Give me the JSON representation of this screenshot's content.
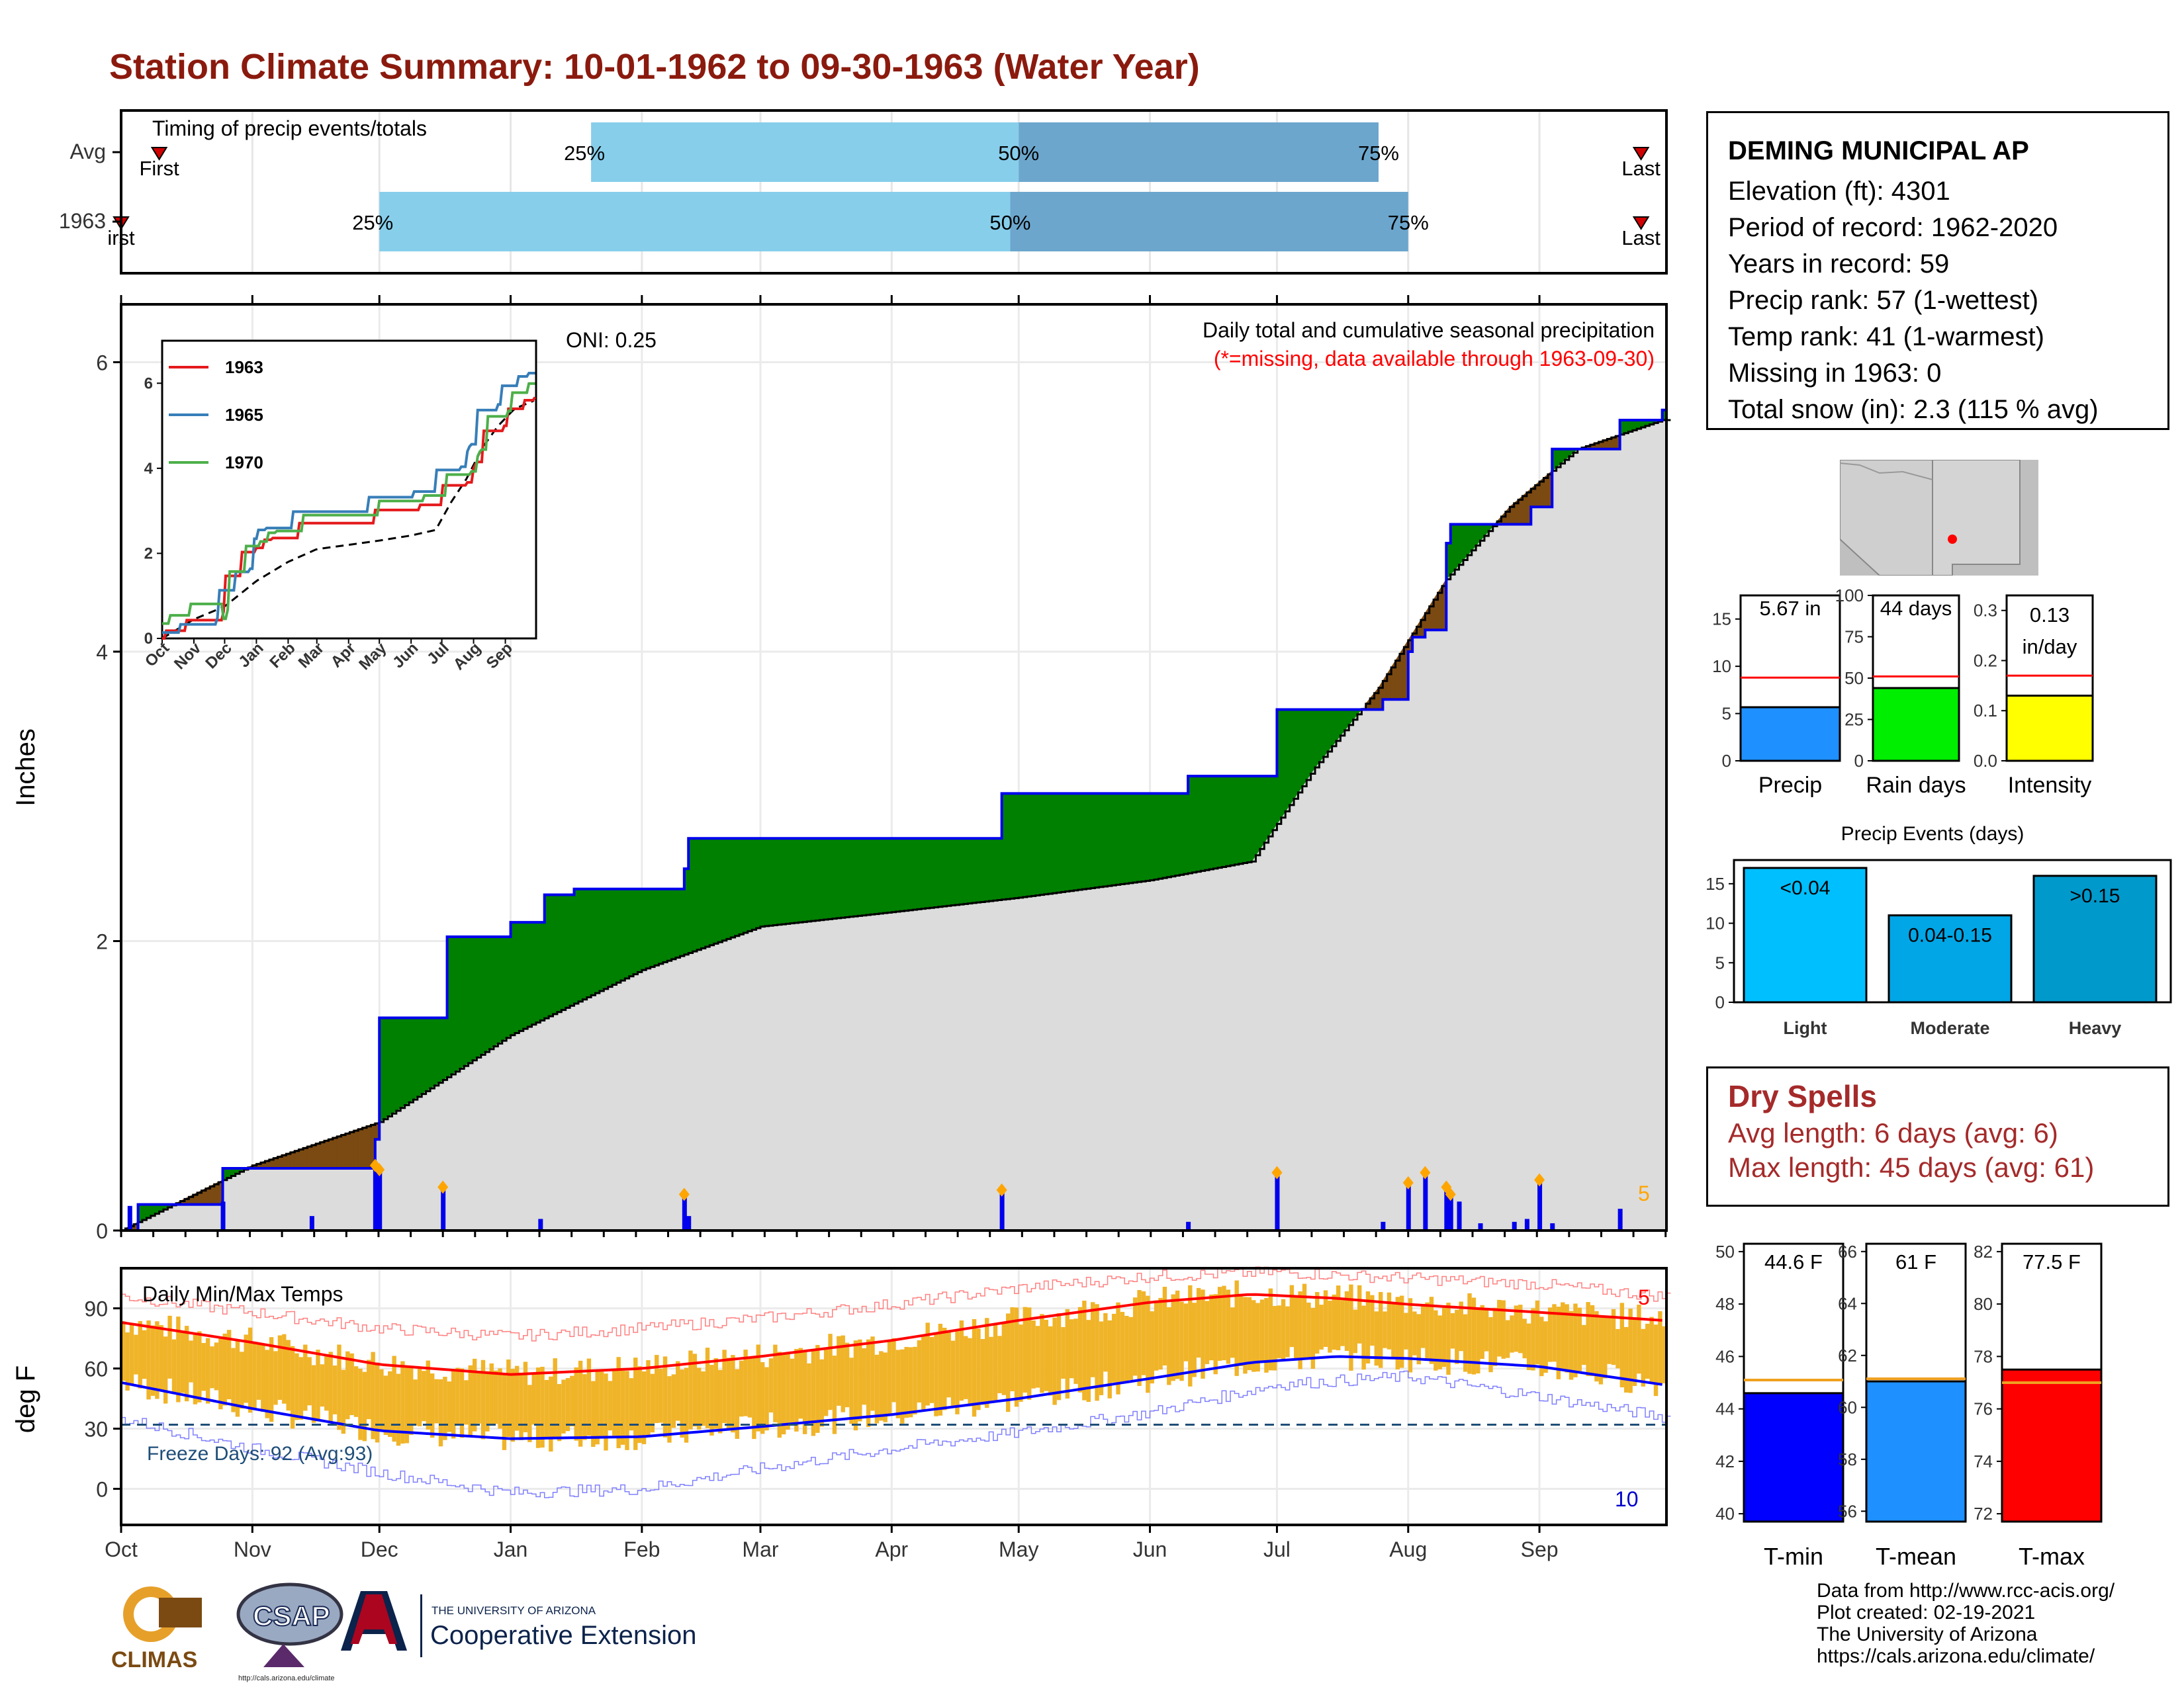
{
  "title": "Station Climate Summary: 10-01-1962 to 09-30-1963 (Water Year)",
  "timing": {
    "label": "Timing of precip events/totals",
    "rows": [
      {
        "name": "Avg",
        "p25": "Jan 20",
        "p50": "May 1",
        "p75": "Jul 25",
        "first": "Oct 10",
        "last": "Sep 25",
        "first_label": "First",
        "last_label": "Last",
        "p25_label": "25%",
        "p50_label": "50%",
        "p75_label": "75%"
      },
      {
        "name": "1963",
        "p25": "Dec 1",
        "p50": "Apr 29",
        "p75": "Aug 1",
        "first": "Oct 1",
        "last": "Sep 25",
        "first_label": "irst",
        "last_label": "Last",
        "p25_label": "25%",
        "p50_label": "50%",
        "p75_label": "75%"
      }
    ]
  },
  "precip_panel": {
    "ylabel": "Inches",
    "header": "Daily total and cumulative seasonal precipitation",
    "subheader": "(*=missing, data available through 1963-09-30)",
    "oni": "ONI: 0.25",
    "count_label": "5",
    "yticks": [
      "0",
      "2",
      "4",
      "6"
    ],
    "colors": {
      "above": "#008000",
      "below": "#7b4a12",
      "avg_fill": "#dcdcdc",
      "obs_line": "#0000ee",
      "bars": "#0000ee",
      "extreme": "#ffa500"
    }
  },
  "inset": {
    "series": [
      {
        "name": "1963",
        "color": "#e41a1c"
      },
      {
        "name": "1965",
        "color": "#377eb8"
      },
      {
        "name": "1970",
        "color": "#4daf4a"
      }
    ],
    "yticks": [
      "0",
      "2",
      "4",
      "6"
    ],
    "months": [
      "Oct",
      "Nov",
      "Dec",
      "Jan",
      "Feb",
      "Mar",
      "Apr",
      "May",
      "Jun",
      "Jul",
      "Aug",
      "Sep"
    ]
  },
  "temp_panel": {
    "ylabel": "deg F",
    "label": "Daily Min/Max Temps",
    "freeze": "Freeze Days: 92 (Avg:93)",
    "high_count": "5",
    "low_count": "10",
    "yticks": [
      "0",
      "30",
      "60",
      "90"
    ]
  },
  "months": [
    "Oct",
    "Nov",
    "Dec",
    "Jan",
    "Feb",
    "Mar",
    "Apr",
    "May",
    "Jun",
    "Jul",
    "Aug",
    "Sep"
  ],
  "station": {
    "name": "DEMING MUNICIPAL AP",
    "elevation": "Elevation (ft): 4301",
    "period": "Period of record: 1962-2020",
    "years": "Years in record: 59",
    "precip_rank": "Precip rank: 57 (1-wettest)",
    "temp_rank": "Temp rank: 41 (1-warmest)",
    "missing": "Missing in 1963: 0",
    "snow": "Total snow (in): 2.3 (115 % avg)"
  },
  "summary_bars": [
    {
      "name": "Precip",
      "label": "5.67 in",
      "label2": "",
      "value": 5.67,
      "avg": 8.8,
      "ymax": 17.5,
      "ticks": [
        "0",
        "5",
        "10",
        "15"
      ],
      "tickvals": [
        0,
        5,
        10,
        15
      ],
      "color": "#1e90ff"
    },
    {
      "name": "Rain days",
      "label": "44 days",
      "label2": "",
      "value": 44,
      "avg": 51,
      "ymax": 100,
      "ticks": [
        "0",
        "25",
        "50",
        "75",
        "100"
      ],
      "tickvals": [
        0,
        25,
        50,
        75,
        100
      ],
      "color": "#00ee00"
    },
    {
      "name": "Intensity",
      "label": "0.13",
      "label2": "in/day",
      "value": 0.13,
      "avg": 0.17,
      "ymax": 0.33,
      "ticks": [
        "0.0",
        "0.1",
        "0.2",
        "0.3"
      ],
      "tickvals": [
        0,
        0.1,
        0.2,
        0.3
      ],
      "color": "#ffff00"
    }
  ],
  "events": {
    "title": "Precip Events (days)",
    "yticks": [
      "0",
      "5",
      "10",
      "15"
    ],
    "bars": [
      {
        "name": "Light",
        "label": "<0.04",
        "value": 17,
        "color": "#00bfff"
      },
      {
        "name": "Moderate",
        "label": "0.04-0.15",
        "value": 11,
        "color": "#00a6e6"
      },
      {
        "name": "Heavy",
        "label": ">0.15",
        "value": 16,
        "color": "#0099cc"
      }
    ]
  },
  "dry_spells": {
    "title": "Dry Spells",
    "avg": "Avg length: 6 days (avg: 6)",
    "max": "Max length: 45 days (avg: 61)"
  },
  "temp_bars": [
    {
      "name": "T-min",
      "label": "44.6 F",
      "value": 44.6,
      "avg": 45.1,
      "ymin": 39.7,
      "ymax": 50.3,
      "ticks": [
        "40",
        "42",
        "44",
        "46",
        "48",
        "50"
      ],
      "tickvals": [
        40,
        42,
        44,
        46,
        48,
        50
      ],
      "color": "#0000ff"
    },
    {
      "name": "T-mean",
      "label": "61 F",
      "value": 61.0,
      "avg": 61.1,
      "ymin": 55.6,
      "ymax": 66.3,
      "ticks": [
        "56",
        "58",
        "60",
        "62",
        "64",
        "66"
      ],
      "tickvals": [
        56,
        58,
        60,
        62,
        64,
        66
      ],
      "color": "#1e90ff"
    },
    {
      "name": "T-max",
      "label": "77.5 F",
      "value": 77.5,
      "avg": 77.0,
      "ymin": 71.7,
      "ymax": 82.3,
      "ticks": [
        "72",
        "74",
        "76",
        "78",
        "80",
        "82"
      ],
      "tickvals": [
        72,
        74,
        76,
        78,
        80,
        82
      ],
      "color": "#ff0000"
    }
  ],
  "credits": [
    "Data from http://www.rcc-acis.org/",
    "Plot created: 02-19-2021",
    "The University of Arizona",
    "https://cals.arizona.edu/climate/"
  ],
  "logos": {
    "climas": "CLIMAS",
    "csap": "CSAP",
    "csap_url": "http://cals.arizona.edu/climate",
    "ua_small": "THE UNIVERSITY OF ARIZONA",
    "ua_big": "Cooperative Extension"
  },
  "chart_data": [
    {
      "type": "area",
      "title": "Daily total and cumulative seasonal precipitation",
      "ylabel": "Inches",
      "ylim": [
        0,
        6.4
      ],
      "x_unit": "date (water year 1962-10-01 to 1963-09-30)",
      "series": [
        {
          "name": "1963 cumulative",
          "x": [
            "1962-10-01",
            "1962-10-05",
            "1962-10-25",
            "1962-11-30",
            "1962-12-01",
            "1962-12-16",
            "1962-12-17",
            "1963-01-01",
            "1963-01-09",
            "1963-01-16",
            "1963-02-11",
            "1963-02-12",
            "1963-04-27",
            "1963-06-10",
            "1963-06-30",
            "1963-07-01",
            "1963-07-26",
            "1963-08-01",
            "1963-08-02",
            "1963-08-05",
            "1963-08-10",
            "1963-08-11",
            "1963-08-20",
            "1963-08-30",
            "1963-09-04",
            "1963-09-20",
            "1963-09-30"
          ],
          "y": [
            0.0,
            0.18,
            0.43,
            0.63,
            1.47,
            1.47,
            2.03,
            2.13,
            2.32,
            2.36,
            2.5,
            2.71,
            3.02,
            3.14,
            3.14,
            3.6,
            3.67,
            4.0,
            4.1,
            4.15,
            4.75,
            4.88,
            4.88,
            5.0,
            5.4,
            5.6,
            5.67
          ]
        },
        {
          "name": "Average cumulative",
          "x": [
            "1962-10-01",
            "1962-11-01",
            "1962-12-01",
            "1963-01-01",
            "1963-02-01",
            "1963-03-01",
            "1963-04-01",
            "1963-05-01",
            "1963-06-01",
            "1963-06-25",
            "1963-07-10",
            "1963-07-25",
            "1963-08-10",
            "1963-08-25",
            "1963-09-10",
            "1963-09-30"
          ],
          "y": [
            0.0,
            0.45,
            0.75,
            1.35,
            1.8,
            2.1,
            2.2,
            2.3,
            2.42,
            2.55,
            3.2,
            3.75,
            4.5,
            5.0,
            5.4,
            5.6
          ]
        }
      ],
      "daily_bars": {
        "dates": [
          "1962-10-03",
          "1962-10-25",
          "1962-11-15",
          "1962-11-30",
          "1962-12-01",
          "1962-12-16",
          "1963-01-08",
          "1963-02-11",
          "1963-02-12",
          "1963-04-27",
          "1963-06-10",
          "1963-07-01",
          "1963-07-26",
          "1963-08-01",
          "1963-08-05",
          "1963-08-10",
          "1963-08-11",
          "1963-08-13",
          "1963-08-18",
          "1963-08-26",
          "1963-08-29",
          "1963-09-01",
          "1963-09-04",
          "1963-09-20"
        ],
        "values": [
          0.17,
          0.2,
          0.1,
          0.45,
          0.42,
          0.3,
          0.08,
          0.25,
          0.1,
          0.28,
          0.06,
          0.4,
          0.06,
          0.33,
          0.4,
          0.3,
          0.25,
          0.2,
          0.05,
          0.06,
          0.08,
          0.35,
          0.05,
          0.15
        ]
      }
    },
    {
      "type": "line",
      "title": "Daily Min/Max Temps",
      "ylabel": "deg F",
      "ylim": [
        -18,
        110
      ],
      "x_unit": "date (water year 1962-10-01 to 1963-09-30)",
      "freeze_line": 32,
      "series": [
        {
          "name": "Avg max",
          "x": [
            "1962-10-01",
            "1962-11-01",
            "1962-12-01",
            "1963-01-01",
            "1963-02-01",
            "1963-03-01",
            "1963-04-01",
            "1963-05-01",
            "1963-06-01",
            "1963-06-25",
            "1963-07-15",
            "1963-08-01",
            "1963-09-01",
            "1963-09-30"
          ],
          "y": [
            83,
            73,
            62,
            57,
            60,
            66,
            74,
            84,
            93,
            97,
            95,
            92,
            88,
            84
          ]
        },
        {
          "name": "Avg min",
          "x": [
            "1962-10-01",
            "1962-11-01",
            "1962-12-01",
            "1963-01-01",
            "1963-02-01",
            "1963-03-01",
            "1963-04-01",
            "1963-05-01",
            "1963-06-01",
            "1963-06-25",
            "1963-07-15",
            "1963-08-01",
            "1963-09-01",
            "1963-09-30"
          ],
          "y": [
            53,
            40,
            29,
            25,
            26,
            31,
            37,
            45,
            55,
            63,
            66,
            65,
            61,
            52
          ]
        },
        {
          "name": "Record max",
          "x": [
            "1962-10-01",
            "1962-11-01",
            "1962-12-01",
            "1963-01-01",
            "1963-02-01",
            "1963-03-01",
            "1963-04-01",
            "1963-05-01",
            "1963-06-01",
            "1963-07-01",
            "1963-08-01",
            "1963-09-01",
            "1963-09-30"
          ],
          "y": [
            96,
            88,
            80,
            76,
            80,
            85,
            92,
            100,
            106,
            108,
            105,
            102,
            96
          ]
        },
        {
          "name": "Record min",
          "x": [
            "1962-10-01",
            "1962-11-01",
            "1962-12-01",
            "1963-01-01",
            "1963-02-01",
            "1963-03-01",
            "1963-04-01",
            "1963-05-01",
            "1963-06-01",
            "1963-07-01",
            "1963-08-01",
            "1963-09-01",
            "1963-09-30"
          ],
          "y": [
            35,
            20,
            8,
            -2,
            0,
            10,
            20,
            28,
            38,
            52,
            56,
            46,
            36
          ]
        }
      ]
    },
    {
      "type": "bar",
      "categories": [
        "Precip"
      ],
      "values": [
        5.67
      ],
      "average": 8.8,
      "ylim": [
        0,
        17.5
      ]
    },
    {
      "type": "bar",
      "categories": [
        "Rain days"
      ],
      "values": [
        44
      ],
      "average": 51,
      "ylim": [
        0,
        100
      ]
    },
    {
      "type": "bar",
      "categories": [
        "Intensity"
      ],
      "values": [
        0.13
      ],
      "average": 0.17,
      "ylim": [
        0,
        0.33
      ]
    },
    {
      "type": "bar",
      "title": "Precip Events (days)",
      "categories": [
        "Light",
        "Moderate",
        "Heavy"
      ],
      "values": [
        17,
        11,
        16
      ],
      "ylim": [
        0,
        18
      ]
    },
    {
      "type": "bar",
      "categories": [
        "T-min",
        "T-mean",
        "T-max"
      ],
      "values": [
        44.6,
        61.0,
        77.5
      ],
      "average": [
        45.1,
        61.1,
        77.0
      ]
    }
  ]
}
